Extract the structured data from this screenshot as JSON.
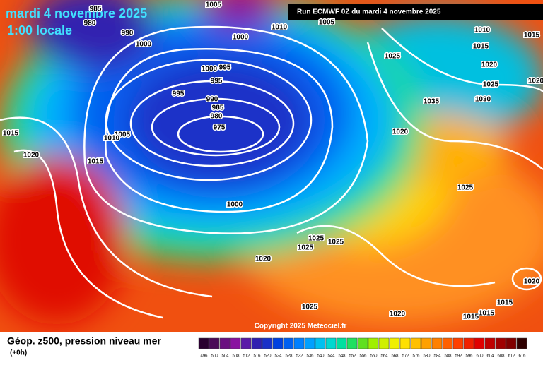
{
  "header": {
    "date": "mardi 4 novembre 2025",
    "time": "1:00 locale",
    "run": "Run ECMWF 0Z du mardi 4 novembre 2025"
  },
  "isobar_labels": [
    "985",
    "980",
    "990",
    "1000",
    "1005",
    "1000",
    "1010",
    "1005",
    "1010",
    "1015",
    "1015",
    "1025",
    "1020",
    "1025",
    "1020",
    "1035",
    "1030",
    "1000",
    "995",
    "995",
    "995",
    "990",
    "985",
    "980",
    "975",
    "1005",
    "1010",
    "1015",
    "1020",
    "1015",
    "1020",
    "1000",
    "1025",
    "1025",
    "1025",
    "1025",
    "1020",
    "1025",
    "1020",
    "1015",
    "1015",
    "1015",
    "1020"
  ],
  "copyright": "Copyright 2025 Meteociel.fr",
  "legend": {
    "title": "Géop. z500, pression niveau mer",
    "subtitle": "(+0h)",
    "values": [
      "496",
      "500",
      "504",
      "508",
      "512",
      "516",
      "520",
      "524",
      "528",
      "532",
      "536",
      "540",
      "544",
      "548",
      "552",
      "556",
      "560",
      "564",
      "568",
      "572",
      "576",
      "580",
      "584",
      "588",
      "592",
      "596",
      "600",
      "604",
      "608",
      "612",
      "616"
    ],
    "colors": [
      "#2a0030",
      "#4a0a58",
      "#6a0f80",
      "#8a12a0",
      "#5a1aa8",
      "#3020b0",
      "#1a30c8",
      "#0040e0",
      "#0060f0",
      "#0080ff",
      "#00a0ff",
      "#00c0f0",
      "#00d8d0",
      "#00e0a0",
      "#20e060",
      "#60e020",
      "#a0f000",
      "#d0f000",
      "#f0f000",
      "#ffe000",
      "#ffc000",
      "#ffa000",
      "#ff8000",
      "#ff6000",
      "#ff4000",
      "#f02000",
      "#e00000",
      "#c00000",
      "#a00000",
      "#800000",
      "#300000"
    ]
  }
}
